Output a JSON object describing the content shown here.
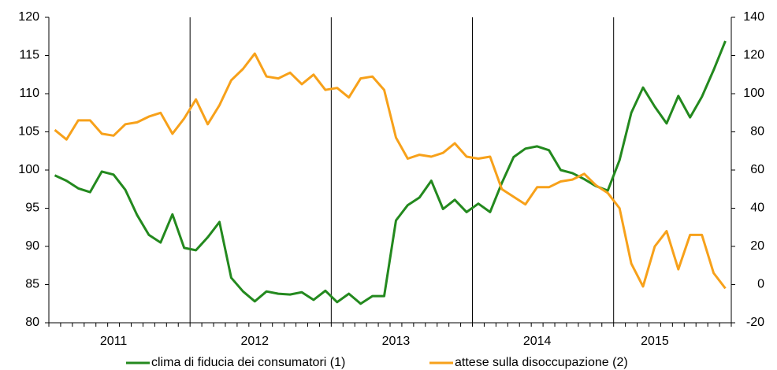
{
  "chart_data": {
    "type": "line",
    "categories": [
      null,
      null,
      null,
      null,
      null,
      "2011",
      null,
      null,
      null,
      null,
      null,
      null,
      null,
      null,
      null,
      null,
      null,
      "2012",
      null,
      null,
      null,
      null,
      null,
      null,
      null,
      null,
      null,
      null,
      null,
      "2013",
      null,
      null,
      null,
      null,
      null,
      null,
      null,
      null,
      null,
      null,
      null,
      "2014",
      null,
      null,
      null,
      null,
      null,
      null,
      null,
      null,
      null,
      "2015",
      null,
      null,
      null,
      null,
      null,
      null
    ],
    "series": [
      {
        "name": "clima di fiducia dei consumatori (1)",
        "color": "#23891e",
        "values": [
          99.3,
          98.6,
          97.6,
          97.1,
          99.8,
          99.4,
          97.4,
          94.1,
          91.5,
          90.5,
          94.2,
          89.8,
          89.5,
          91.2,
          93.2,
          85.9,
          84.1,
          82.8,
          84.1,
          83.8,
          83.7,
          84.0,
          83.0,
          84.2,
          82.7,
          83.8,
          82.5,
          83.5,
          83.5,
          93.4,
          95.4,
          96.4,
          98.6,
          94.9,
          96.1,
          94.5,
          95.6,
          94.5,
          98.3,
          101.7,
          102.8,
          103.1,
          102.6,
          100.0,
          99.6,
          98.8,
          97.9,
          97.3,
          101.3,
          107.5,
          110.8,
          108.3,
          106.1,
          109.7,
          106.9,
          109.6,
          113.1,
          116.9
        ]
      },
      {
        "name": "attese sulla disoccupazione (2)",
        "color": "#f7a11a",
        "axis": "y2",
        "values": [
          81,
          76,
          86,
          86,
          79,
          78,
          84,
          85,
          88,
          90,
          79,
          87,
          97,
          84,
          94,
          107,
          113,
          121,
          109,
          108,
          111,
          105,
          110,
          102,
          103,
          98,
          108,
          109,
          102,
          77,
          66,
          68,
          67,
          69,
          74,
          67,
          66,
          67,
          50,
          46,
          42,
          51,
          51,
          54,
          55,
          58,
          52,
          48,
          40,
          11,
          -1,
          20,
          28,
          8,
          26,
          26,
          6,
          -2
        ]
      }
    ],
    "ylim": [
      80,
      120
    ],
    "yticks": [
      80,
      85,
      90,
      95,
      100,
      105,
      110,
      115,
      120
    ],
    "y2lim": [
      -20,
      140
    ],
    "y2ticks": [
      -20,
      0,
      20,
      40,
      60,
      80,
      100,
      120,
      140
    ],
    "legend": "bottom"
  }
}
